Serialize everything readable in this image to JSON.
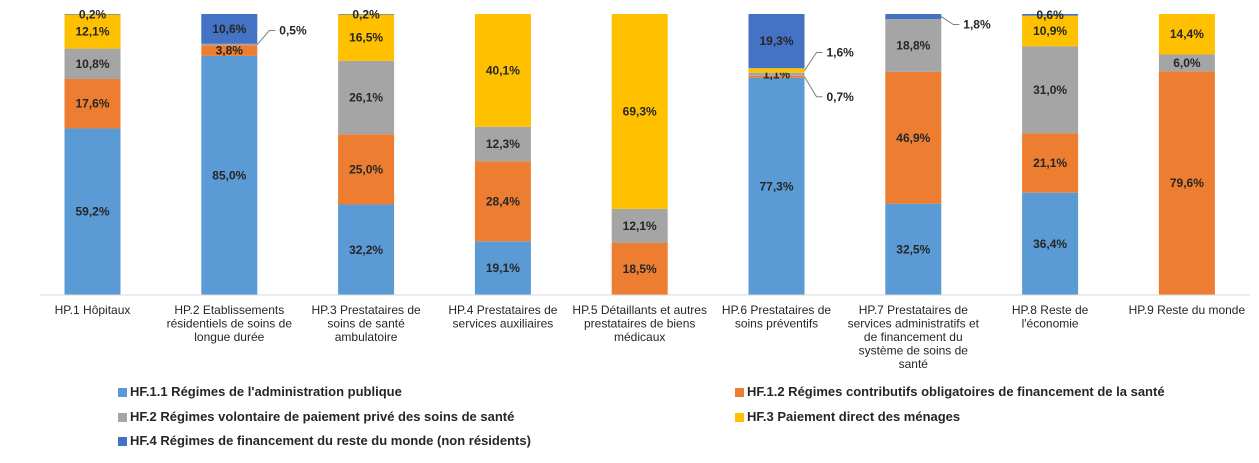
{
  "chart_data": {
    "type": "bar",
    "stacked": true,
    "percent_stacked": true,
    "categories": [
      "HP.1 Hôpitaux",
      "HP.2 Etablissements résidentiels de soins de longue durée",
      "HP.3 Prestataires de soins de santé ambulatoire",
      "HP.4 Prestataires de services auxiliaires",
      "HP.5 Détaillants et autres prestataires de biens médicaux",
      "HP.6 Prestataires de soins préventifs",
      "HP.7 Prestataires de services administratifs et de financement du système de soins de santé",
      "HP.8 Reste de l'économie",
      "HP.9 Reste du monde"
    ],
    "category_lines": [
      [
        "HP.1 Hôpitaux"
      ],
      [
        "HP.2 Etablissements",
        "résidentiels de soins de",
        "longue durée"
      ],
      [
        "HP.3 Prestataires de",
        "soins de santé",
        "ambulatoire"
      ],
      [
        "HP.4 Prestataires de",
        "services auxiliaires"
      ],
      [
        "HP.5 Détaillants et autres",
        "prestataires de biens",
        "médicaux"
      ],
      [
        "HP.6 Prestataires de",
        "soins préventifs"
      ],
      [
        "HP.7 Prestataires de",
        "services administratifs et",
        "de financement du",
        "système de soins de",
        "santé"
      ],
      [
        "HP.8 Reste de",
        "l'économie"
      ],
      [
        "HP.9 Reste du monde"
      ]
    ],
    "series": [
      {
        "name": "HF.1.1 Régimes de l'administration publique",
        "color": "#5B9BD5",
        "values": [
          59.2,
          85.0,
          32.2,
          19.1,
          0,
          77.3,
          32.5,
          36.4,
          0
        ],
        "labels": [
          "59,2%",
          "85,0%",
          "32,2%",
          "19,1%",
          "",
          "77,3%",
          "32,5%",
          "36,4%",
          ""
        ]
      },
      {
        "name": "HF.1.2 Régimes contributifs obligatoires de financement de la santé",
        "color": "#ED7D31",
        "values": [
          17.6,
          3.8,
          25.0,
          28.4,
          18.5,
          0.7,
          46.9,
          21.1,
          79.6
        ],
        "labels": [
          "17,6%",
          "3,8%",
          "25,0%",
          "28,4%",
          "18,5%",
          "0,7%",
          "46,9%",
          "21,1%",
          "79,6%"
        ]
      },
      {
        "name": "HF.2 Régimes volontaire de paiement privé des soins de santé",
        "color": "#A5A5A5",
        "values": [
          10.8,
          0.5,
          26.1,
          12.3,
          12.1,
          1.1,
          18.8,
          31.0,
          6.0
        ],
        "labels": [
          "10,8%",
          "0,5%",
          "26,1%",
          "12,3%",
          "12,1%",
          "1,1%",
          "18,8%",
          "31,0%",
          "6,0%"
        ]
      },
      {
        "name": "HF.3 Paiement direct des ménages",
        "color": "#FFC000",
        "values": [
          12.1,
          0,
          16.5,
          40.1,
          69.3,
          1.6,
          0,
          10.9,
          14.4
        ],
        "labels": [
          "12,1%",
          "",
          "16,5%",
          "40,1%",
          "69,3%",
          "1,6%",
          "",
          "10,9%",
          "14,4%"
        ]
      },
      {
        "name": "HF.4 Régimes de financement du reste du monde (non résidents)",
        "color": "#4472C4",
        "values": [
          0.2,
          10.6,
          0.2,
          0,
          0,
          19.3,
          1.8,
          0.6,
          0
        ],
        "labels": [
          "0,2%",
          "10,6%",
          "0,2%",
          "",
          "",
          "19,3%",
          "1,8%",
          "0,6%",
          ""
        ]
      }
    ],
    "ylim": [
      0,
      100
    ],
    "grid": false,
    "legend_position": "bottom"
  }
}
